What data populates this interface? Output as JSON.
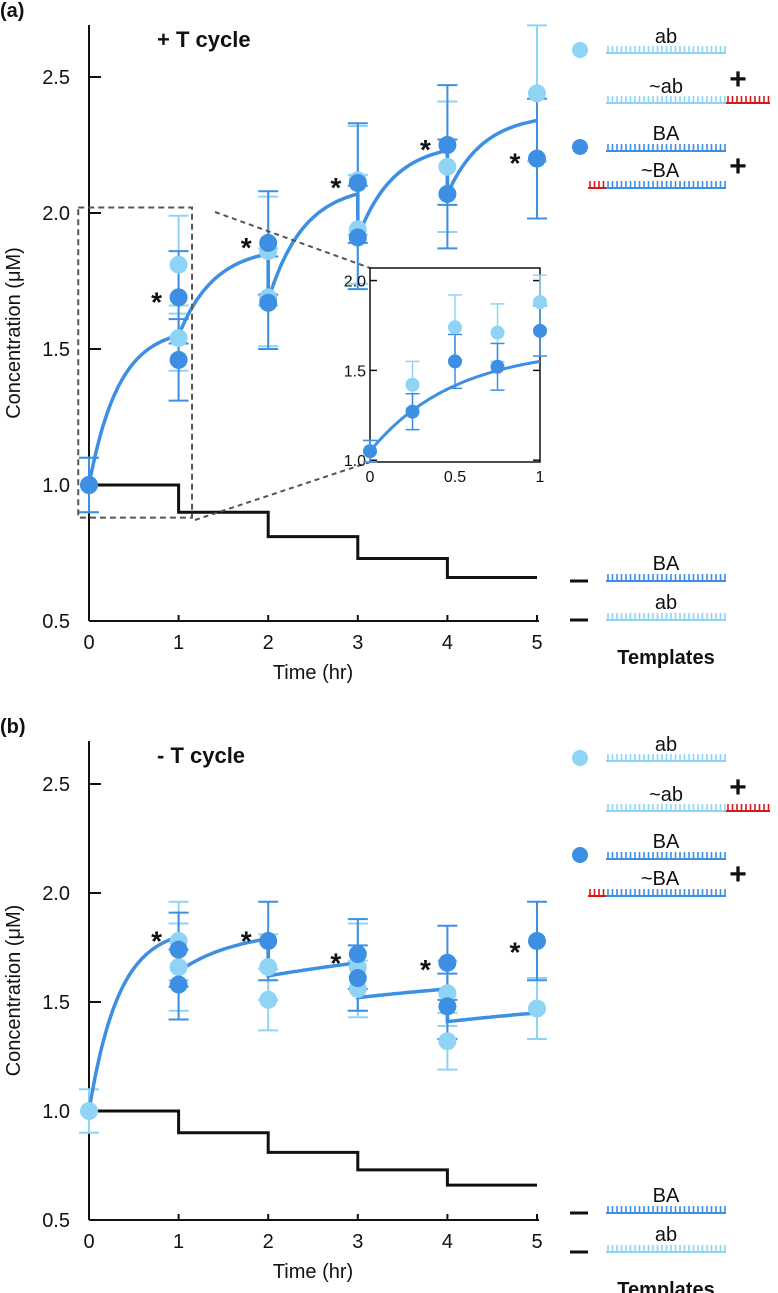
{
  "chart_data": [
    {
      "type": "scatter",
      "panel_label": "(a)",
      "title": "+ T cycle",
      "xlabel": "Time (hr)",
      "ylabel": "Concentration (μM)",
      "xlim": [
        0,
        5
      ],
      "ylim": [
        0.5,
        2.7
      ],
      "xticks": [
        0,
        1,
        2,
        3,
        4,
        5
      ],
      "xtick_labels": [
        "0",
        "1",
        "2",
        "3",
        "4",
        "5"
      ],
      "yticks": [
        0.5,
        1.0,
        1.5,
        2.0,
        2.5
      ],
      "ytick_labels": [
        "0.5",
        "1.0",
        "1.5",
        "2.0",
        "2.5"
      ],
      "series": [
        {
          "name": "ab",
          "color": "#8fd3f5",
          "points": [
            [
              0,
              1.0,
              0.1
            ],
            [
              1,
              1.81,
              0.18
            ],
            [
              1,
              1.54,
              0.12
            ],
            [
              2,
              1.86,
              0.2
            ],
            [
              2,
              1.69,
              0.18
            ],
            [
              3,
              2.12,
              0.2
            ],
            [
              3,
              1.94,
              0.2
            ],
            [
              4,
              2.17,
              0.24
            ],
            [
              5,
              2.44,
              0.25
            ]
          ]
        },
        {
          "name": "BA",
          "color": "#3d8fe3",
          "points": [
            [
              0,
              1.0,
              0.1
            ],
            [
              1,
              1.69,
              0.17
            ],
            [
              1,
              1.46,
              0.15
            ],
            [
              2,
              1.89,
              0.19
            ],
            [
              2,
              1.67,
              0.17
            ],
            [
              3,
              2.11,
              0.22
            ],
            [
              3,
              1.91,
              0.19
            ],
            [
              4,
              2.25,
              0.22
            ],
            [
              4,
              2.07,
              0.2
            ],
            [
              5,
              2.2,
              0.22
            ]
          ]
        }
      ],
      "asterisk": "*",
      "asterisks": [
        [
          1,
          1.69
        ],
        [
          2,
          1.89
        ],
        [
          3,
          2.11
        ],
        [
          4,
          2.25
        ],
        [
          5,
          2.2
        ]
      ],
      "model_curve": {
        "color": "#3d8fe3",
        "segments": [
          [
            0,
            1,
            1.0,
            1.55
          ],
          [
            1,
            2,
            1.55,
            1.85
          ],
          [
            2,
            3,
            1.68,
            2.07
          ],
          [
            3,
            4,
            1.91,
            2.23
          ],
          [
            4,
            5,
            2.07,
            2.34
          ]
        ]
      },
      "templates_line": {
        "color": "#111111",
        "values": [
          1.0,
          0.9,
          0.81,
          0.73,
          0.66
        ]
      },
      "zoom_box": {
        "xlim": [
          -0.12,
          1.15
        ],
        "ylim": [
          0.88,
          2.02
        ]
      },
      "inset": {
        "xlim": [
          0,
          1
        ],
        "ylim": [
          0.99,
          2.07
        ],
        "xticks": [
          0,
          0.5,
          1
        ],
        "xtick_labels": [
          "0",
          "0.5",
          "1"
        ],
        "yticks": [
          1.0,
          1.5,
          2.0
        ],
        "ytick_labels": [
          "1.0",
          "1.5",
          "2.0"
        ],
        "series": [
          {
            "name": "ab",
            "color": "#8fd3f5",
            "points": [
              [
                0,
                1.05,
                0.06
              ],
              [
                0.25,
                1.42,
                0.13
              ],
              [
                0.5,
                1.74,
                0.18
              ],
              [
                0.75,
                1.71,
                0.16
              ],
              [
                1,
                1.88,
                0.15
              ]
            ]
          },
          {
            "name": "BA",
            "color": "#3d8fe3",
            "points": [
              [
                0,
                1.05,
                0.06
              ],
              [
                0.25,
                1.27,
                0.1
              ],
              [
                0.5,
                1.55,
                0.15
              ],
              [
                0.75,
                1.52,
                0.13
              ],
              [
                1,
                1.72,
                0.14
              ]
            ]
          }
        ],
        "model_curve": {
          "color": "#3d8fe3",
          "segments": [
            [
              0,
              1,
              1.05,
              1.55
            ]
          ]
        }
      },
      "legend": {
        "species": [
          {
            "marker_color": "#8fd3f5",
            "label": "ab",
            "complement": "~ab",
            "plus": "+"
          },
          {
            "marker_color": "#3d8fe3",
            "label": "BA",
            "complement": "~BA",
            "plus": "+"
          }
        ],
        "templates": {
          "title": "Templates",
          "dash": "—",
          "items": [
            "BA",
            "ab"
          ]
        },
        "overhang_color": "#d7191c"
      }
    },
    {
      "type": "scatter",
      "panel_label": "(b)",
      "title": "- T cycle",
      "xlabel": "Time (hr)",
      "ylabel": "Concentration (μM)",
      "xlim": [
        0,
        5
      ],
      "ylim": [
        0.5,
        2.7
      ],
      "xticks": [
        0,
        1,
        2,
        3,
        4,
        5
      ],
      "xtick_labels": [
        "0",
        "1",
        "2",
        "3",
        "4",
        "5"
      ],
      "yticks": [
        0.5,
        1.0,
        1.5,
        2.0,
        2.5
      ],
      "ytick_labels": [
        "0.5",
        "1.0",
        "1.5",
        "2.0",
        "2.5"
      ],
      "series": [
        {
          "name": "ab",
          "color": "#8fd3f5",
          "points": [
            [
              0,
              1.0,
              0.1
            ],
            [
              1,
              1.78,
              0.18
            ],
            [
              1,
              1.66,
              0.2
            ],
            [
              2,
              1.66,
              0.15
            ],
            [
              2,
              1.51,
              0.14
            ],
            [
              3,
              1.66,
              0.2
            ],
            [
              3,
              1.56,
              0.13
            ],
            [
              4,
              1.54,
              0.15
            ],
            [
              4,
              1.32,
              0.13
            ],
            [
              5,
              1.47,
              0.14
            ]
          ]
        },
        {
          "name": "BA",
          "color": "#3d8fe3",
          "points": [
            [
              1,
              1.74,
              0.17
            ],
            [
              1,
              1.58,
              0.16
            ],
            [
              2,
              1.78,
              0.18
            ],
            [
              3,
              1.72,
              0.16
            ],
            [
              3,
              1.61,
              0.15
            ],
            [
              4,
              1.68,
              0.17
            ],
            [
              4,
              1.48,
              0.15
            ],
            [
              5,
              1.78,
              0.18
            ]
          ]
        }
      ],
      "asterisk": "*",
      "asterisks": [
        [
          1,
          1.8
        ],
        [
          2,
          1.8
        ],
        [
          3,
          1.7
        ],
        [
          4,
          1.67
        ],
        [
          5,
          1.75
        ]
      ],
      "model_curve": {
        "color": "#3d8fe3",
        "segments": [
          [
            0,
            1,
            1.0,
            1.8
          ],
          [
            1,
            2,
            1.64,
            1.79
          ],
          [
            2,
            3,
            1.62,
            1.68
          ],
          [
            3,
            4,
            1.52,
            1.56
          ],
          [
            4,
            5,
            1.41,
            1.45
          ]
        ]
      },
      "templates_line": {
        "color": "#111111",
        "values": [
          1.0,
          0.9,
          0.81,
          0.73,
          0.66
        ]
      },
      "legend": {
        "species": [
          {
            "marker_color": "#8fd3f5",
            "label": "ab",
            "complement": "~ab",
            "plus": "+"
          },
          {
            "marker_color": "#3d8fe3",
            "label": "BA",
            "complement": "~BA",
            "plus": "+"
          }
        ],
        "templates": {
          "title": "Templates",
          "dash": "—",
          "items": [
            "BA",
            "ab"
          ]
        },
        "overhang_color": "#d7191c"
      }
    }
  ]
}
